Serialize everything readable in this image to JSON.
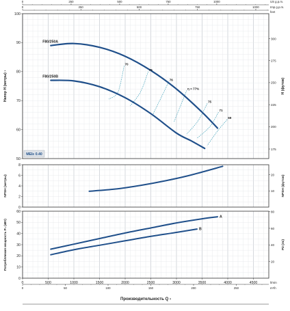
{
  "chart_data": [
    {
      "type": "line",
      "panel": "head",
      "ylabel": "Напор H (метры)",
      "ylabel_right": "H (футов)",
      "badge": "MEI≥ 0.40",
      "xlim": [
        0,
        4800
      ],
      "ylim": [
        50,
        100
      ],
      "y_ticks": [
        "50",
        "60",
        "70",
        "80",
        "90",
        "100"
      ],
      "y_ticks_right": [
        "175",
        "200",
        "225",
        "250",
        "275",
        "300"
      ],
      "y_ticks_right_values_m": [
        53.3,
        61.0,
        68.6,
        76.2,
        83.8,
        91.4
      ],
      "grid": true,
      "series": [
        {
          "name": "F80/250A",
          "x": [
            550,
            1000,
            1500,
            2000,
            2500,
            3000,
            3500,
            3800
          ],
          "y": [
            89.0,
            89.7,
            88.4,
            85.3,
            80.4,
            74.0,
            66.0,
            60.5
          ]
        },
        {
          "name": "F80/250B",
          "x": [
            550,
            1000,
            1500,
            2000,
            2500,
            3000,
            3300,
            3550
          ],
          "y": [
            77.0,
            76.8,
            74.8,
            71.0,
            65.5,
            58.8,
            56.0,
            53.5
          ]
        }
      ],
      "efficiency_labels": [
        "70",
        "75",
        "76",
        "η = 77%",
        "75",
        "71",
        "69"
      ],
      "efficiency_label_points": [
        {
          "x": 1980,
          "y": 82.0
        },
        {
          "x": 2450,
          "y": 80.0
        },
        {
          "x": 2850,
          "y": 76.5
        },
        {
          "x": 3200,
          "y": 73.5
        },
        {
          "x": 3600,
          "y": 69.0
        },
        {
          "x": 3820,
          "y": 66.0
        },
        {
          "x": 3990,
          "y": 63.5
        }
      ],
      "efficiency_curves": [
        [
          [
            1980,
            82.0
          ],
          [
            1860,
            73.0
          ],
          [
            1680,
            70.5
          ]
        ],
        [
          [
            2450,
            80.0
          ],
          [
            2300,
            73.0
          ],
          [
            2100,
            68.2
          ]
        ],
        [
          [
            2850,
            76.5
          ],
          [
            2700,
            71.0
          ],
          [
            2520,
            64.5
          ]
        ],
        [
          [
            3200,
            73.5
          ],
          [
            3050,
            67.0
          ],
          [
            2950,
            62.5
          ]
        ],
        [
          [
            3600,
            69.0
          ],
          [
            3420,
            63.0
          ],
          [
            3200,
            58.5
          ]
        ],
        [
          [
            3820,
            66.0
          ],
          [
            3650,
            61.0
          ],
          [
            3400,
            57.0
          ]
        ],
        [
          [
            3990,
            63.5
          ],
          [
            3800,
            59.5
          ],
          [
            3600,
            54.5
          ]
        ]
      ],
      "top_axis_usgpm": {
        "label": "US g.p.m.",
        "ticks": [
          "0",
          "250",
          "500",
          "750",
          "1000"
        ],
        "values": [
          0,
          250,
          500,
          750,
          1000
        ]
      },
      "top_axis_impgpm": {
        "label": "Imp g.p.m.",
        "ticks": [
          "0",
          "250",
          "500",
          "750",
          "1000"
        ],
        "values": [
          0,
          250,
          500,
          750,
          1000
        ]
      },
      "top_axis_feet_label": "feet"
    },
    {
      "type": "line",
      "panel": "npsh",
      "ylabel": "NPSH (метры)",
      "ylabel_right": "NPSH (футов)",
      "xlim": [
        0,
        4800
      ],
      "ylim": [
        0,
        8
      ],
      "y_ticks": [
        "0",
        "2",
        "4",
        "6",
        "8"
      ],
      "y_ticks_right": [
        "10",
        "20"
      ],
      "y_ticks_right_values_m": [
        3.05,
        6.1
      ],
      "grid": true,
      "series": [
        {
          "x": [
            1300,
            1800,
            2300,
            2800,
            3300,
            3900
          ],
          "y": [
            3.0,
            3.4,
            4.1,
            5.0,
            6.1,
            7.7
          ]
        }
      ]
    },
    {
      "type": "line",
      "panel": "power",
      "ylabel": "Потребляемая мощность P₂ (кВт)",
      "ylabel_right": "P2 (лс)",
      "xlabel": "Производительность Q",
      "xlim": [
        0,
        4800
      ],
      "ylim": [
        0,
        60
      ],
      "x_ticks": [
        "0",
        "500",
        "1000",
        "1500",
        "2000",
        "2500",
        "3000",
        "3500",
        "4000",
        "4500"
      ],
      "x_unit": "l/min",
      "y_ticks": [
        "0",
        "10",
        "20",
        "30",
        "40",
        "50",
        "60"
      ],
      "y_ticks_right": [
        "20",
        "40",
        "60",
        "80"
      ],
      "y_ticks_right_values_kw": [
        14.9,
        29.8,
        44.7,
        59.7
      ],
      "bottom_axis_m3h": {
        "label": "m³/h",
        "ticks": [
          "0",
          "50",
          "100",
          "150",
          "200",
          "250"
        ],
        "values": [
          0,
          50,
          100,
          150,
          200,
          250
        ]
      },
      "grid": true,
      "series": [
        {
          "name": "A",
          "x": [
            550,
            1000,
            1500,
            2000,
            2500,
            3000,
            3500,
            3800
          ],
          "y": [
            26.0,
            30.5,
            35.5,
            40.5,
            45.0,
            49.5,
            53.2,
            55.0
          ]
        },
        {
          "name": "B",
          "x": [
            550,
            1000,
            1500,
            2000,
            2500,
            3000,
            3400
          ],
          "y": [
            21.0,
            25.5,
            29.5,
            33.5,
            37.5,
            41.0,
            44.0
          ]
        }
      ]
    }
  ]
}
